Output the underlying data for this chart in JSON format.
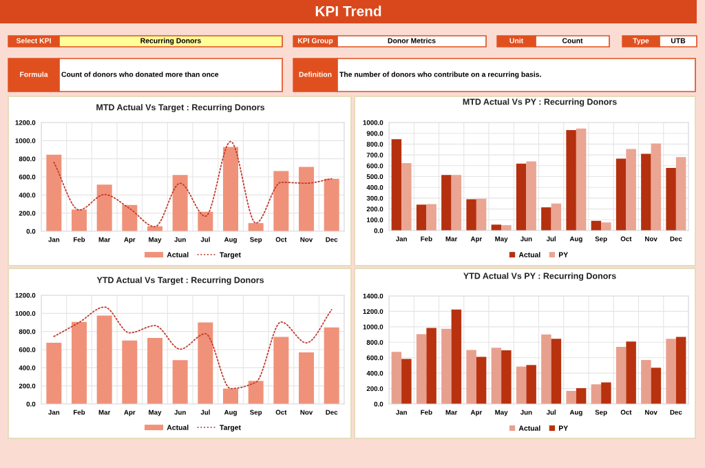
{
  "chart_data": [
    {
      "type": "other",
      "title": "KPI Trend",
      "annotations": [
        "Select KPI",
        "Recurring Donors",
        "KPI Group",
        "Donor Metrics",
        "Unit",
        "Count",
        "Type",
        "UTB",
        "Formula",
        "Count of donors who donated more than once",
        "Definition",
        "The number of donors who contribute on a recurring basis."
      ]
    },
    {
      "type": "bar",
      "title": "MTD Actual Vs Target : Recurring Donors",
      "categories": [
        "Jan",
        "Feb",
        "Mar",
        "Apr",
        "May",
        "Jun",
        "Jul",
        "Aug",
        "Sep",
        "Oct",
        "Nov",
        "Dec"
      ],
      "series": [
        {
          "name": "Actual",
          "color": "#f0927a",
          "values": [
            845,
            240,
            515,
            290,
            55,
            620,
            215,
            930,
            90,
            665,
            710,
            580
          ]
        },
        {
          "name": "Target",
          "type": "line",
          "color": "#c0392b",
          "values": [
            760,
            235,
            405,
            250,
            50,
            530,
            165,
            990,
            90,
            540,
            530,
            580
          ]
        }
      ],
      "ylim": [
        0,
        1200
      ],
      "yticks": [
        {
          "value": 0,
          "label": "0.0"
        },
        {
          "value": 200,
          "label": "200.0"
        },
        {
          "value": 400,
          "label": "400.0"
        },
        {
          "value": 600,
          "label": "600.0"
        },
        {
          "value": 800,
          "label": "800.0"
        },
        {
          "value": 1000,
          "label": "1000.0"
        },
        {
          "value": 1200,
          "label": "1200.0"
        }
      ],
      "grid": true,
      "legend": "bottom",
      "line_style": "dotted"
    },
    {
      "type": "bar",
      "title": "MTD Actual Vs PY : Recurring Donors",
      "categories": [
        "Jan",
        "Feb",
        "Mar",
        "Apr",
        "May",
        "Jun",
        "Jul",
        "Aug",
        "Sep",
        "Oct",
        "Nov",
        "Dec"
      ],
      "series": [
        {
          "name": "Actual",
          "color": "#b5300f",
          "values": [
            845,
            240,
            515,
            290,
            55,
            620,
            215,
            930,
            90,
            665,
            710,
            580
          ]
        },
        {
          "name": "PY",
          "color": "#eaa593",
          "values": [
            625,
            245,
            515,
            295,
            50,
            640,
            250,
            945,
            75,
            755,
            805,
            680
          ]
        }
      ],
      "ylim": [
        0,
        1000
      ],
      "yticks": [
        {
          "value": 0,
          "label": "0.0"
        },
        {
          "value": 100,
          "label": "100.0"
        },
        {
          "value": 200,
          "label": "200.0"
        },
        {
          "value": 300,
          "label": "300.0"
        },
        {
          "value": 400,
          "label": "400.0"
        },
        {
          "value": 500,
          "label": "500.0"
        },
        {
          "value": 600,
          "label": "600.0"
        },
        {
          "value": 700,
          "label": "700.0"
        },
        {
          "value": 800,
          "label": "800.0"
        },
        {
          "value": 900,
          "label": "900.0"
        },
        {
          "value": 1000,
          "label": "1000.0"
        }
      ],
      "grid": true,
      "legend": "bottom"
    },
    {
      "type": "bar",
      "title": "YTD Actual Vs Target : Recurring Donors",
      "categories": [
        "Jan",
        "Feb",
        "Mar",
        "Apr",
        "May",
        "Jun",
        "Jul",
        "Aug",
        "Sep",
        "Oct",
        "Nov",
        "Dec"
      ],
      "series": [
        {
          "name": "Actual",
          "color": "#f0927a",
          "values": [
            675,
            905,
            975,
            700,
            730,
            485,
            900,
            170,
            255,
            740,
            570,
            845
          ]
        },
        {
          "name": "Target",
          "type": "line",
          "color": "#c0392b",
          "values": [
            745,
            900,
            1070,
            785,
            865,
            605,
            775,
            170,
            240,
            905,
            675,
            1040
          ]
        }
      ],
      "ylim": [
        0,
        1200
      ],
      "yticks": [
        {
          "value": 0,
          "label": "0.0"
        },
        {
          "value": 200,
          "label": "200.0"
        },
        {
          "value": 400,
          "label": "400.0"
        },
        {
          "value": 600,
          "label": "600.0"
        },
        {
          "value": 800,
          "label": "800.0"
        },
        {
          "value": 1000,
          "label": "1000.0"
        },
        {
          "value": 1200,
          "label": "1200.0"
        }
      ],
      "grid": true,
      "legend": "bottom",
      "line_style": "dotted"
    },
    {
      "type": "bar",
      "title": "YTD Actual Vs PY : Recurring Donors",
      "categories": [
        "Jan",
        "Feb",
        "Mar",
        "Apr",
        "May",
        "Jun",
        "Jul",
        "Aug",
        "Sep",
        "Oct",
        "Nov",
        "Dec"
      ],
      "series": [
        {
          "name": "Actual",
          "color": "#e8a08e",
          "values": [
            675,
            905,
            975,
            700,
            730,
            485,
            900,
            170,
            255,
            740,
            570,
            845
          ]
        },
        {
          "name": "PY",
          "color": "#b83210",
          "values": [
            585,
            985,
            1225,
            610,
            695,
            505,
            845,
            205,
            280,
            810,
            470,
            870
          ]
        }
      ],
      "ylim": [
        0,
        1400
      ],
      "yticks": [
        {
          "value": 0,
          "label": "0.0"
        },
        {
          "value": 200,
          "label": "200.0"
        },
        {
          "value": 400,
          "label": "400.0"
        },
        {
          "value": 600,
          "label": "600.0"
        },
        {
          "value": 800,
          "label": "800.0"
        },
        {
          "value": 1000,
          "label": "1000.0"
        },
        {
          "value": 1200,
          "label": "1200.0"
        },
        {
          "value": 1400,
          "label": "1400.0"
        }
      ],
      "grid": true,
      "legend": "bottom"
    }
  ]
}
